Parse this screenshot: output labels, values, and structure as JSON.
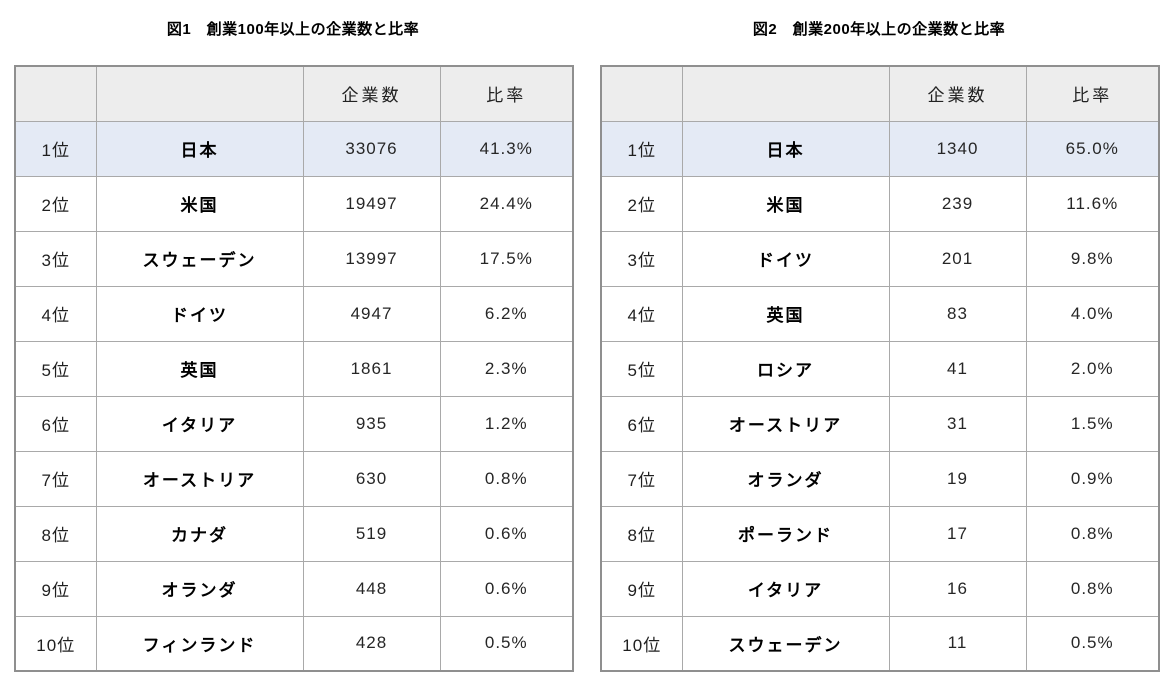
{
  "styles": {
    "header_bg": "#ededed",
    "highlight_bg": "#e4eaf5",
    "border_outer": "#8f8f8f",
    "border_inner": "#a9a9a9",
    "text": "#1f1f1f"
  },
  "chart_data": [
    {
      "type": "table",
      "title": "図1　創業100年以上の企業数と比率",
      "columns": [
        "",
        "",
        "企業数",
        "比率"
      ],
      "highlight_row": 0,
      "rows": [
        [
          "1位",
          "日本",
          "33076",
          "41.3%"
        ],
        [
          "2位",
          "米国",
          "19497",
          "24.4%"
        ],
        [
          "3位",
          "スウェーデン",
          "13997",
          "17.5%"
        ],
        [
          "4位",
          "ドイツ",
          "4947",
          "6.2%"
        ],
        [
          "5位",
          "英国",
          "1861",
          "2.3%"
        ],
        [
          "6位",
          "イタリア",
          "935",
          "1.2%"
        ],
        [
          "7位",
          "オーストリア",
          "630",
          "0.8%"
        ],
        [
          "8位",
          "カナダ",
          "519",
          "0.6%"
        ],
        [
          "9位",
          "オランダ",
          "448",
          "0.6%"
        ],
        [
          "10位",
          "フィンランド",
          "428",
          "0.5%"
        ]
      ],
      "counts": [
        33076,
        19497,
        13997,
        4947,
        1861,
        935,
        630,
        519,
        448,
        428
      ],
      "ratios_percent": [
        41.3,
        24.4,
        17.5,
        6.2,
        2.3,
        1.2,
        0.8,
        0.6,
        0.6,
        0.5
      ]
    },
    {
      "type": "table",
      "title": "図2　創業200年以上の企業数と比率",
      "columns": [
        "",
        "",
        "企業数",
        "比率"
      ],
      "highlight_row": 0,
      "rows": [
        [
          "1位",
          "日本",
          "1340",
          "65.0%"
        ],
        [
          "2位",
          "米国",
          "239",
          "11.6%"
        ],
        [
          "3位",
          "ドイツ",
          "201",
          "9.8%"
        ],
        [
          "4位",
          "英国",
          "83",
          "4.0%"
        ],
        [
          "5位",
          "ロシア",
          "41",
          "2.0%"
        ],
        [
          "6位",
          "オーストリア",
          "31",
          "1.5%"
        ],
        [
          "7位",
          "オランダ",
          "19",
          "0.9%"
        ],
        [
          "8位",
          "ポーランド",
          "17",
          "0.8%"
        ],
        [
          "9位",
          "イタリア",
          "16",
          "0.8%"
        ],
        [
          "10位",
          "スウェーデン",
          "11",
          "0.5%"
        ]
      ],
      "counts": [
        1340,
        239,
        201,
        83,
        41,
        31,
        19,
        17,
        16,
        11
      ],
      "ratios_percent": [
        65.0,
        11.6,
        9.8,
        4.0,
        2.0,
        1.5,
        0.9,
        0.8,
        0.8,
        0.5
      ]
    }
  ]
}
